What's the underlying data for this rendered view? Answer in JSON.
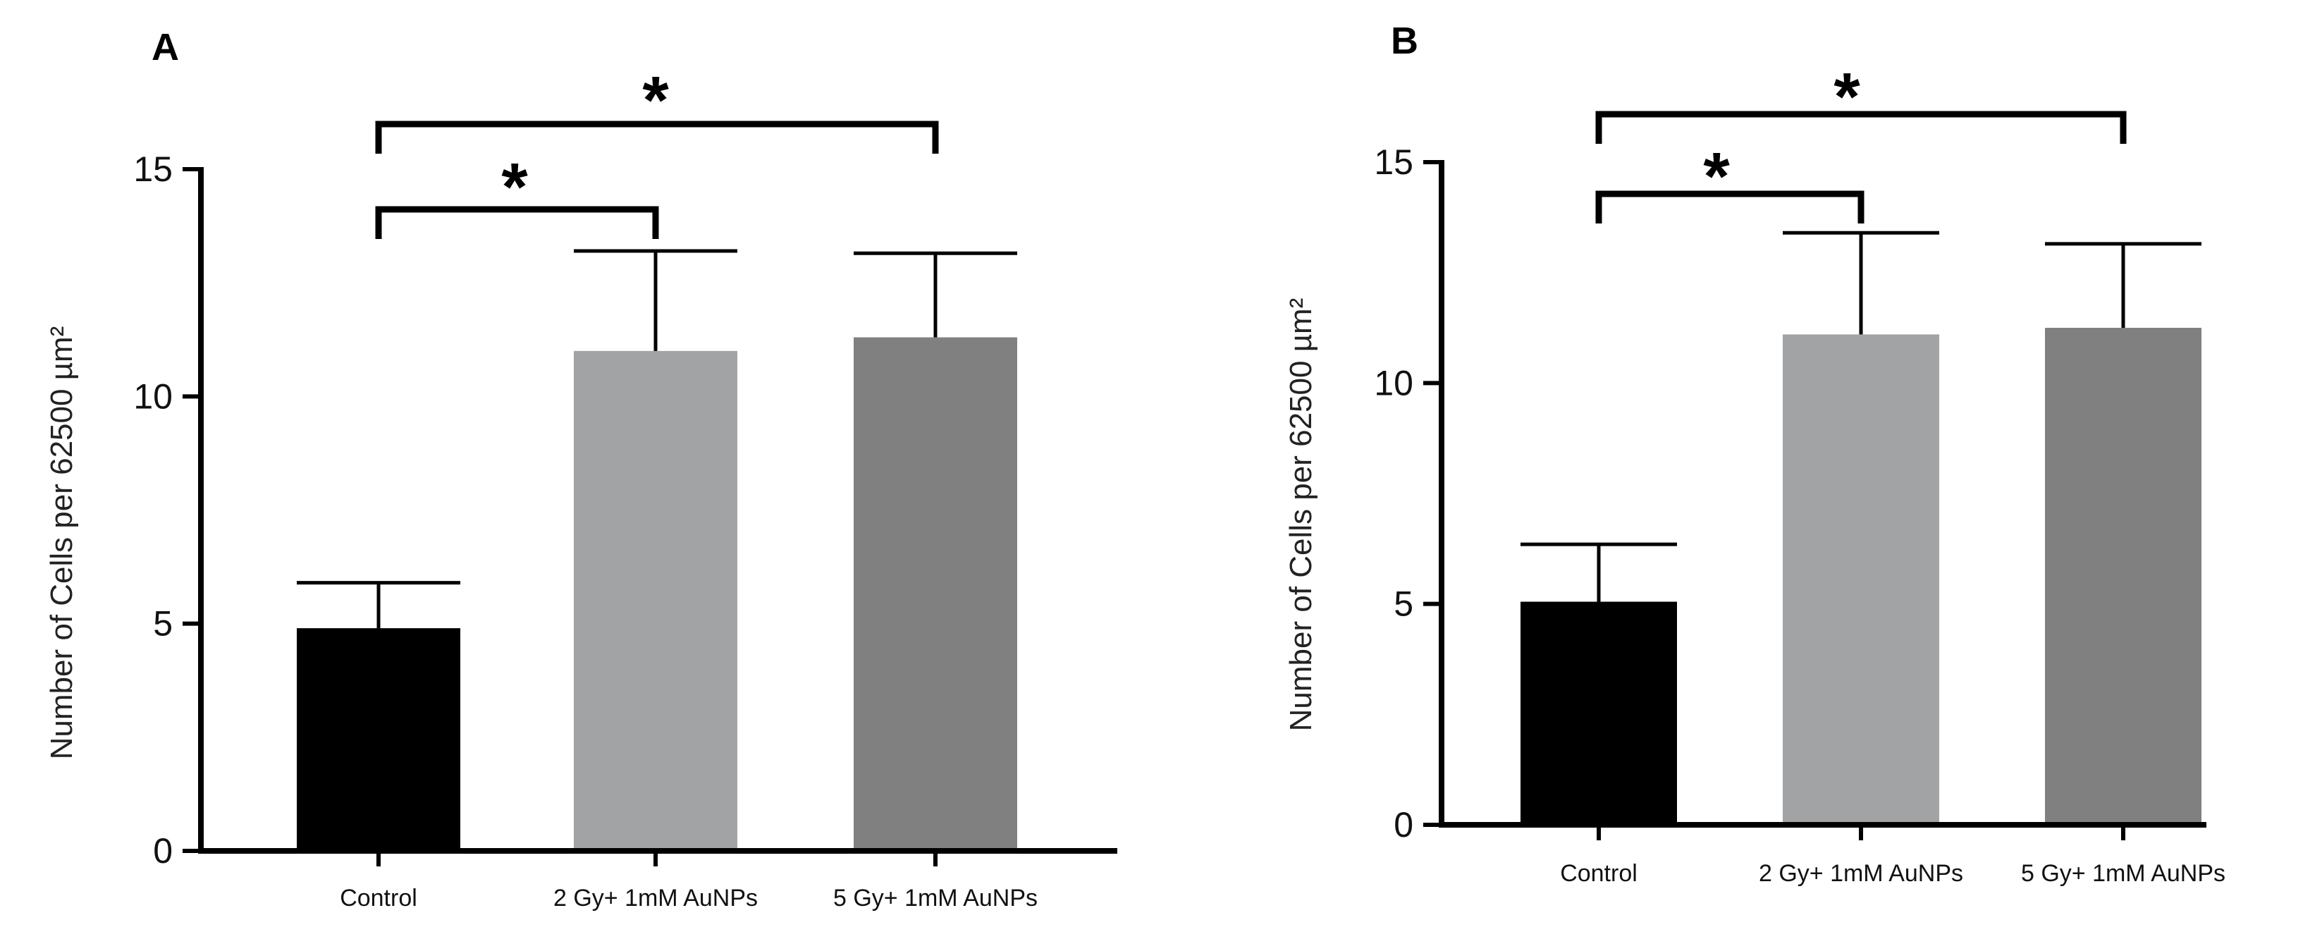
{
  "chart_data": [
    {
      "type": "bar",
      "panel": "A",
      "categories": [
        "Control",
        "2 Gy+ 1mM AuNPs",
        "5 Gy+ 1mM AuNPs"
      ],
      "values": [
        4.9,
        11.0,
        11.3
      ],
      "errors": [
        1.0,
        2.2,
        1.85
      ],
      "colors": [
        "#000000",
        "#a2a3a5",
        "#808080"
      ],
      "ylabel": "Number of Cells per 62500 µm²",
      "ylim": [
        0,
        15
      ],
      "yticks": [
        "0",
        "5",
        "10",
        "15"
      ],
      "grid": false,
      "significance": [
        {
          "from": 0,
          "to": 1,
          "label": "*"
        },
        {
          "from": 0,
          "to": 2,
          "label": "*"
        }
      ]
    },
    {
      "type": "bar",
      "panel": "B",
      "categories": [
        "Control",
        "2 Gy+ 1mM AuNPs",
        "5 Gy+ 1mM AuNPs"
      ],
      "values": [
        5.05,
        11.1,
        11.25
      ],
      "errors": [
        1.3,
        2.3,
        1.9
      ],
      "colors": [
        "#000000",
        "#a2a3a5",
        "#808080"
      ],
      "ylabel": "Number of Cells per 62500 µm²",
      "ylim": [
        0,
        15
      ],
      "yticks": [
        "0",
        "5",
        "10",
        "15"
      ],
      "grid": false,
      "significance": [
        {
          "from": 0,
          "to": 1,
          "label": "*"
        },
        {
          "from": 0,
          "to": 2,
          "label": "*"
        }
      ]
    }
  ]
}
